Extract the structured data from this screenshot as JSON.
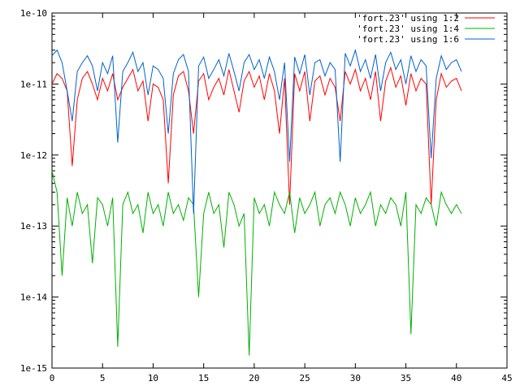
{
  "chart_data": {
    "type": "line",
    "title": "",
    "xlabel": "",
    "ylabel": "",
    "x_scale": "linear",
    "y_scale": "log",
    "xlim": [
      0,
      45
    ],
    "ylim": [
      1e-15,
      1e-10
    ],
    "x_ticks": [
      0,
      5,
      10,
      15,
      20,
      25,
      30,
      35,
      40,
      45
    ],
    "x_tick_labels": [
      "0",
      "5",
      "10",
      "15",
      "20",
      "25",
      "30",
      "35",
      "40",
      "45"
    ],
    "y_ticks": [
      1e-15,
      1e-14,
      1e-13,
      1e-12,
      1e-11,
      1e-10
    ],
    "y_tick_labels": [
      "1e-15",
      "1e-14",
      "1e-13",
      "1e-12",
      "1e-11",
      "1e-10"
    ],
    "grid": false,
    "legend_position": "top-right",
    "series": [
      {
        "name": "'fort.23' using 1:2",
        "color": "#ff0000",
        "x": [
          0,
          0.5,
          1,
          1.5,
          2,
          2.5,
          3,
          3.5,
          4,
          4.5,
          5,
          5.5,
          6,
          6.5,
          7,
          7.5,
          8,
          8.5,
          9,
          9.5,
          10,
          10.5,
          11,
          11.5,
          12,
          12.5,
          13,
          13.5,
          14,
          14.5,
          15,
          15.5,
          16,
          16.5,
          17,
          17.5,
          18,
          18.5,
          19,
          19.5,
          20,
          20.5,
          21,
          21.5,
          22,
          22.5,
          23,
          23.5,
          24,
          24.5,
          25,
          25.5,
          26,
          26.5,
          27,
          27.5,
          28,
          28.5,
          29,
          29.5,
          30,
          30.5,
          31,
          31.5,
          32,
          32.5,
          33,
          33.5,
          34,
          34.5,
          35,
          35.5,
          36,
          36.5,
          37,
          37.5,
          38,
          38.5,
          39,
          39.5,
          40,
          40.5
        ],
        "y": [
          1e-11,
          1.4e-11,
          1.2e-11,
          8e-12,
          7e-13,
          6e-12,
          1.2e-11,
          1.5e-11,
          1e-11,
          6e-12,
          1.2e-11,
          8e-12,
          1.4e-11,
          6e-12,
          9e-12,
          1.2e-11,
          1.6e-11,
          8e-12,
          1.1e-11,
          3e-12,
          1e-11,
          9e-12,
          6e-12,
          4e-13,
          7e-12,
          1.3e-11,
          1.5e-11,
          8e-12,
          2e-12,
          1.1e-11,
          1.4e-11,
          6e-12,
          9e-12,
          1.2e-11,
          7e-12,
          1.6e-11,
          8e-12,
          4e-12,
          1.1e-11,
          1.5e-11,
          9e-12,
          1.3e-11,
          6e-12,
          1.4e-11,
          8e-12,
          2e-12,
          1.2e-11,
          2e-13,
          1.4e-11,
          8e-12,
          1.5e-11,
          3e-12,
          1.1e-11,
          1.3e-11,
          7e-12,
          1.2e-11,
          9e-12,
          3e-12,
          1.5e-11,
          1e-11,
          1.6e-11,
          8e-12,
          1.2e-11,
          6e-12,
          1.5e-11,
          3e-12,
          1.1e-11,
          1.7e-11,
          9e-12,
          1.3e-11,
          5e-12,
          1.4e-11,
          8e-12,
          1.2e-11,
          1e-11,
          2e-13,
          6e-12,
          1.4e-11,
          9e-12,
          1.1e-11,
          1.2e-11,
          8e-12
        ]
      },
      {
        "name": "'fort.23' using 1:4",
        "color": "#00b000",
        "x": [
          0,
          0.5,
          1,
          1.5,
          2,
          2.5,
          3,
          3.5,
          4,
          4.5,
          5,
          5.5,
          6,
          6.5,
          7,
          7.5,
          8,
          8.5,
          9,
          9.5,
          10,
          10.5,
          11,
          11.5,
          12,
          12.5,
          13,
          13.5,
          14,
          14.5,
          15,
          15.5,
          16,
          16.5,
          17,
          17.5,
          18,
          18.5,
          19,
          19.5,
          20,
          20.5,
          21,
          21.5,
          22,
          22.5,
          23,
          23.5,
          24,
          24.5,
          25,
          25.5,
          26,
          26.5,
          27,
          27.5,
          28,
          28.5,
          29,
          29.5,
          30,
          30.5,
          31,
          31.5,
          32,
          32.5,
          33,
          33.5,
          34,
          34.5,
          35,
          35.5,
          36,
          36.5,
          37,
          37.5,
          38,
          38.5,
          39,
          39.5,
          40,
          40.5
        ],
        "y": [
          6e-13,
          3e-13,
          2e-14,
          2.5e-13,
          1e-13,
          3e-13,
          1.5e-13,
          2e-13,
          3e-14,
          2.5e-13,
          2e-13,
          1e-13,
          2.5e-13,
          2e-15,
          2e-13,
          3e-13,
          1.5e-13,
          2e-13,
          8e-14,
          3e-13,
          1.5e-13,
          2e-13,
          1e-13,
          3e-13,
          1.5e-13,
          2e-13,
          1.2e-13,
          2.5e-13,
          2e-13,
          1e-14,
          1.5e-13,
          3e-13,
          1.5e-13,
          2e-13,
          5e-14,
          3e-13,
          2e-13,
          1e-13,
          1.5e-13,
          1.5e-15,
          2.5e-13,
          1.5e-13,
          2e-13,
          1e-13,
          3e-13,
          2e-13,
          1.5e-13,
          3e-13,
          8e-14,
          2.5e-13,
          1.5e-13,
          2e-13,
          3e-13,
          1e-13,
          2e-13,
          2.5e-13,
          1.5e-13,
          3e-13,
          2e-13,
          1e-13,
          2.5e-13,
          1.5e-13,
          2e-13,
          3e-13,
          1e-13,
          2e-13,
          1.5e-13,
          2.5e-13,
          2e-13,
          1e-13,
          3e-13,
          3e-15,
          2e-13,
          1.5e-13,
          2.5e-13,
          2e-13,
          1e-13,
          3e-13,
          2e-13,
          1.5e-13,
          2e-13,
          1.5e-13
        ]
      },
      {
        "name": "'fort.23' using 1:6",
        "color": "#0060d0",
        "x": [
          0,
          0.5,
          1,
          1.5,
          2,
          2.5,
          3,
          3.5,
          4,
          4.5,
          5,
          5.5,
          6,
          6.5,
          7,
          7.5,
          8,
          8.5,
          9,
          9.5,
          10,
          10.5,
          11,
          11.5,
          12,
          12.5,
          13,
          13.5,
          14,
          14.5,
          15,
          15.5,
          16,
          16.5,
          17,
          17.5,
          18,
          18.5,
          19,
          19.5,
          20,
          20.5,
          21,
          21.5,
          22,
          22.5,
          23,
          23.5,
          24,
          24.5,
          25,
          25.5,
          26,
          26.5,
          27,
          27.5,
          28,
          28.5,
          29,
          29.5,
          30,
          30.5,
          31,
          31.5,
          32,
          32.5,
          33,
          33.5,
          34,
          34.5,
          35,
          35.5,
          36,
          36.5,
          37,
          37.5,
          38,
          38.5,
          39,
          39.5,
          40,
          40.5
        ],
        "y": [
          2.5e-11,
          3e-11,
          2e-11,
          8e-12,
          3e-12,
          1.5e-11,
          2e-11,
          2.5e-11,
          1.8e-11,
          8e-12,
          2e-11,
          1.4e-11,
          2.5e-11,
          1.5e-12,
          1.5e-11,
          2e-11,
          2.8e-11,
          1.5e-11,
          2e-11,
          7e-12,
          1.8e-11,
          1.6e-11,
          1.2e-11,
          2e-12,
          1.4e-11,
          2.2e-11,
          2.6e-11,
          1.5e-11,
          1.5e-13,
          1.8e-11,
          2.4e-11,
          1.2e-11,
          1.6e-11,
          2.2e-11,
          1.3e-11,
          2.7e-11,
          1.5e-11,
          8e-12,
          2e-11,
          2.6e-11,
          1.6e-11,
          2.2e-11,
          1.2e-11,
          2.4e-11,
          1.5e-11,
          6e-12,
          2e-11,
          8e-13,
          2.4e-11,
          1.4e-11,
          2.6e-11,
          7e-12,
          2e-11,
          2.2e-11,
          1.3e-11,
          2e-11,
          1.6e-11,
          8e-13,
          2.7e-11,
          1.8e-11,
          3e-11,
          1.5e-11,
          2.2e-11,
          1.2e-11,
          2.6e-11,
          8e-12,
          2e-11,
          2.8e-11,
          1.6e-11,
          2.2e-11,
          1e-11,
          2.5e-11,
          1.5e-11,
          2.2e-11,
          1.8e-11,
          9e-13,
          1.2e-11,
          2.5e-11,
          1.6e-11,
          2e-11,
          2.2e-11,
          1.5e-11
        ]
      }
    ]
  }
}
